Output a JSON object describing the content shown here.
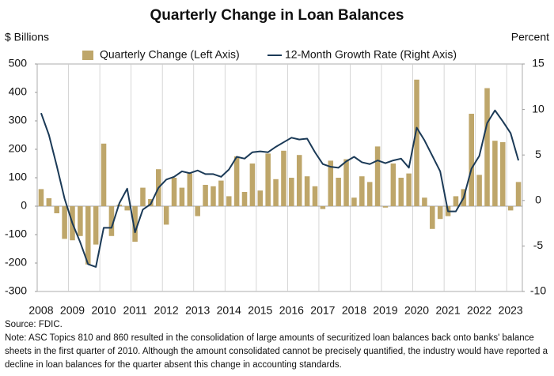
{
  "chart_data": {
    "type": "bar",
    "title": "Quarterly Change in Loan Balances",
    "y_label": "$ Billions",
    "y2_label": "Percent",
    "categories": [
      "2008",
      null,
      null,
      null,
      "2009",
      null,
      null,
      null,
      "2010",
      null,
      null,
      null,
      "2011",
      null,
      null,
      null,
      "2012",
      null,
      null,
      null,
      "2013",
      null,
      null,
      null,
      "2014",
      null,
      null,
      null,
      "2015",
      null,
      null,
      null,
      "2016",
      null,
      null,
      null,
      "2017",
      null,
      null,
      null,
      "2018",
      null,
      null,
      null,
      "2019",
      null,
      null,
      null,
      "2020",
      null,
      null,
      null,
      "2021",
      null,
      null,
      null,
      "2022",
      null,
      null,
      null,
      "2023",
      null
    ],
    "series": [
      {
        "name": "Quarterly Change (Left Axis)",
        "type": "bar",
        "color": "#bea66a",
        "values": [
          60,
          28,
          -25,
          -115,
          -120,
          -105,
          -205,
          -135,
          220,
          -105,
          5,
          -15,
          -125,
          65,
          25,
          130,
          -65,
          100,
          65,
          115,
          -35,
          75,
          70,
          90,
          35,
          175,
          50,
          150,
          55,
          185,
          95,
          195,
          100,
          180,
          105,
          70,
          -10,
          160,
          100,
          165,
          30,
          105,
          85,
          210,
          -5,
          150,
          100,
          115,
          445,
          30,
          -80,
          -45,
          -35,
          35,
          60,
          325,
          110,
          415,
          230,
          225,
          -15,
          85
        ]
      },
      {
        "name": "12-Month Growth Rate (Right Axis)",
        "type": "line",
        "axis": "y2",
        "color": "#1b3a57",
        "values": [
          9.6,
          7.2,
          3.8,
          0.2,
          -2.5,
          -4.6,
          -7.0,
          -7.3,
          -3.0,
          -3.0,
          -0.3,
          1.3,
          -3.5,
          -1.0,
          -0.4,
          1.4,
          2.3,
          2.6,
          3.2,
          3.0,
          3.3,
          2.9,
          2.9,
          2.6,
          3.4,
          4.8,
          4.6,
          5.3,
          5.4,
          5.3,
          5.9,
          6.4,
          6.9,
          6.7,
          6.8,
          5.3,
          4.0,
          3.7,
          3.6,
          4.3,
          4.8,
          4.2,
          4.0,
          4.4,
          4.1,
          4.4,
          4.6,
          3.6,
          8.0,
          6.6,
          4.9,
          3.2,
          -1.2,
          -1.2,
          0.3,
          3.5,
          4.9,
          8.5,
          9.9,
          8.7,
          7.4,
          4.4
        ]
      }
    ],
    "ylim": [
      -300,
      500
    ],
    "yticks": [
      -300,
      -200,
      -100,
      0,
      100,
      200,
      300,
      400,
      500
    ],
    "y2lim": [
      -10,
      15
    ],
    "y2ticks": [
      -10,
      -5,
      0,
      5,
      10,
      15
    ],
    "source": "Source: FDIC.",
    "note": "Note: ASC Topics 810 and 860 resulted in the consolidation of large amounts of securitized loan balances back onto banks' balance sheets in the first quarter of 2010. Although the amount consolidated cannot be precisely quantified, the industry would have reported a decline in loan balances for the quarter absent this change in accounting standards."
  }
}
